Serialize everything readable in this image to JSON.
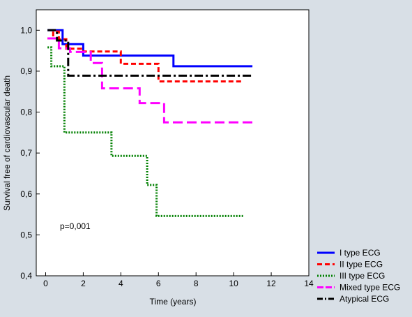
{
  "chart_data": {
    "type": "line",
    "xlabel": "Time (years)",
    "ylabel": "Survival free of cardiovascular death",
    "xlim": [
      -0.5,
      14
    ],
    "ylim": [
      0.4,
      1.05
    ],
    "xticks": [
      0,
      2,
      4,
      6,
      8,
      10,
      12,
      14
    ],
    "yticks": [
      0.4,
      0.5,
      0.6,
      0.7,
      0.8,
      0.9,
      1.0
    ],
    "xtick_labels": [
      "0",
      "2",
      "4",
      "6",
      "8",
      "10",
      "12",
      "14"
    ],
    "ytick_labels": [
      "0,4",
      "0,5",
      "0,6",
      "0,7",
      "0,8",
      "0,9",
      "1,0"
    ],
    "grid": false,
    "legend_position": "bottom-right",
    "annotation": "p=0,001",
    "series": [
      {
        "name": "I type ECG",
        "color": "#0000ff",
        "dash": "solid",
        "x": [
          0.1,
          0.9,
          0.9,
          2.0,
          2.0,
          6.8,
          6.8,
          11.0
        ],
        "y": [
          1.0,
          1.0,
          0.966,
          0.966,
          0.938,
          0.938,
          0.912,
          0.912
        ]
      },
      {
        "name": "II type ECG",
        "color": "#ff0000",
        "dash": "dashed",
        "x": [
          0.1,
          0.4,
          0.4,
          0.7,
          0.7,
          1.1,
          1.1,
          2.0,
          2.0,
          4.0,
          4.0,
          6.0,
          6.0,
          10.5
        ],
        "y": [
          0.98,
          0.98,
          0.997,
          0.997,
          0.978,
          0.978,
          0.955,
          0.955,
          0.948,
          0.948,
          0.918,
          0.918,
          0.875,
          0.875
        ]
      },
      {
        "name": "III type ECG",
        "color": "#008000",
        "dash": "dotted",
        "x": [
          0.1,
          0.3,
          0.3,
          1.0,
          1.0,
          3.5,
          3.5,
          5.4,
          5.4,
          5.9,
          5.9,
          10.5
        ],
        "y": [
          0.958,
          0.958,
          0.912,
          0.912,
          0.75,
          0.75,
          0.693,
          0.693,
          0.622,
          0.622,
          0.546,
          0.546
        ]
      },
      {
        "name": "Mixed type ECG",
        "color": "#ff00ff",
        "dash": "long-dash",
        "x": [
          0.1,
          0.7,
          0.7,
          1.3,
          1.3,
          2.4,
          2.4,
          3.0,
          3.0,
          5.0,
          5.0,
          6.3,
          6.3,
          11.0
        ],
        "y": [
          0.98,
          0.98,
          0.956,
          0.956,
          0.947,
          0.947,
          0.92,
          0.92,
          0.858,
          0.858,
          0.822,
          0.822,
          0.775,
          0.775
        ]
      },
      {
        "name": "Atypical ECG",
        "color": "#000000",
        "dash": "dash-dot",
        "x": [
          0.1,
          0.6,
          0.6,
          1.2,
          1.2,
          11.0
        ],
        "y": [
          1.0,
          1.0,
          0.975,
          0.975,
          0.889,
          0.889
        ]
      }
    ]
  }
}
